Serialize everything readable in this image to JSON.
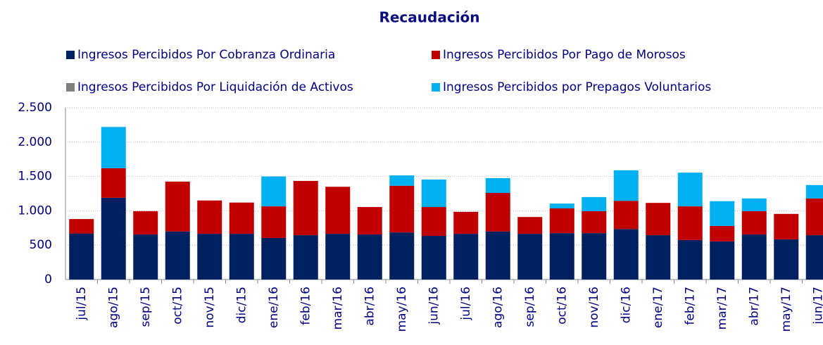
{
  "chart_data": {
    "type": "stacked_bar",
    "title": "Recaudación",
    "categories": [
      "jul/15",
      "ago/15",
      "sep/15",
      "oct/15",
      "nov/15",
      "dic/15",
      "ene/16",
      "feb/16",
      "mar/16",
      "abr/16",
      "may/16",
      "jun/16",
      "jul/16",
      "ago/16",
      "sep/16",
      "oct/16",
      "nov/16",
      "dic/16",
      "ene/17",
      "feb/17",
      "mar/17",
      "abr/17",
      "may/17",
      "jun/17"
    ],
    "series": [
      {
        "name": "Ingresos Percibidos Por Cobranza Ordinaria",
        "color": "#002060",
        "values": [
          670,
          1190,
          655,
          700,
          665,
          665,
          605,
          645,
          665,
          655,
          685,
          635,
          665,
          700,
          665,
          675,
          675,
          735,
          645,
          575,
          555,
          655,
          585,
          645
        ]
      },
      {
        "name": "Ingresos Percibidos Por Pago de Morosos",
        "color": "#c00000",
        "values": [
          210,
          430,
          340,
          725,
          485,
          455,
          460,
          790,
          685,
          400,
          680,
          420,
          320,
          560,
          245,
          360,
          320,
          410,
          470,
          490,
          225,
          340,
          370,
          535
        ]
      },
      {
        "name": "Ingresos Percibidos Por Liquidación de Activos",
        "color": "#808080",
        "values": [
          0,
          0,
          0,
          0,
          0,
          0,
          0,
          0,
          0,
          0,
          0,
          0,
          0,
          0,
          0,
          0,
          0,
          0,
          0,
          0,
          0,
          0,
          0,
          0
        ]
      },
      {
        "name": "Ingresos Percibidos por Prepagos Voluntarios",
        "color": "#00b0f0",
        "values": [
          0,
          600,
          0,
          0,
          0,
          0,
          435,
          0,
          0,
          0,
          150,
          400,
          0,
          215,
          0,
          70,
          205,
          445,
          0,
          490,
          360,
          185,
          0,
          195
        ]
      }
    ],
    "ylim": [
      0,
      2500
    ],
    "yticks": [
      0,
      {
        "value": 500,
        "label": "500"
      },
      {
        "value": 1000,
        "label": "1.000"
      },
      {
        "value": 1500,
        "label": "1.500"
      },
      {
        "value": 2000,
        "label": "2.000"
      },
      {
        "value": 2500,
        "label": "2.500"
      }
    ],
    "grid": true,
    "legend": "top"
  }
}
